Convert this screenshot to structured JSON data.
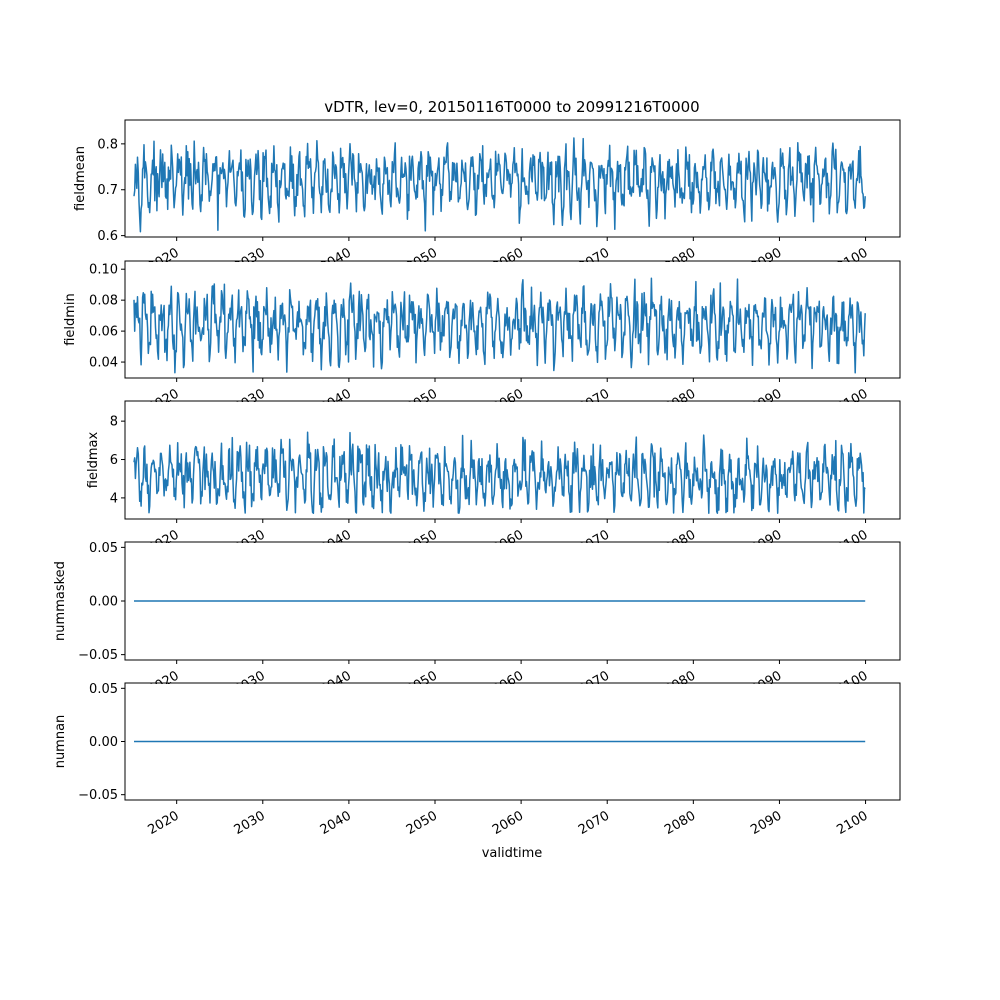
{
  "figure": {
    "title": "vDTR, lev=0, 20150116T0000 to 20991216T0000",
    "xlabel": "validtime",
    "line_color": "#1f77b4"
  },
  "chart_data": [
    {
      "type": "line",
      "ylabel": "fieldmean",
      "xlim": [
        2014,
        2104
      ],
      "ylim": [
        0.597,
        0.852
      ],
      "yticks": [
        0.6,
        0.7,
        0.8
      ],
      "ytick_labels": [
        "0.6",
        "0.7",
        "0.8"
      ],
      "xticks": [
        2020,
        2030,
        2040,
        2050,
        2060,
        2070,
        2080,
        2090,
        2100
      ],
      "xtick_labels": [
        "2020",
        "2030",
        "2040",
        "2050",
        "2060",
        "2070",
        "2080",
        "2090",
        "2100"
      ],
      "x_start": 2015.04,
      "x_end": 2099.96,
      "n_points": 1020,
      "series": [
        {
          "values_summary": {
            "min": 0.607,
            "max": 0.838,
            "mean": 0.72
          }
        }
      ],
      "sample_values": [
        0.68,
        0.66,
        0.71,
        0.78,
        0.74,
        0.7,
        0.76,
        0.72,
        0.69,
        0.81,
        0.73,
        0.66,
        0.75,
        0.79,
        0.7,
        0.65,
        0.74,
        0.77,
        0.68,
        0.72
      ]
    },
    {
      "type": "line",
      "ylabel": "fieldmin",
      "xlim": [
        2014,
        2104
      ],
      "ylim": [
        0.0297,
        0.1053
      ],
      "yticks": [
        0.04,
        0.06,
        0.08,
        0.1
      ],
      "ytick_labels": [
        "0.04",
        "0.06",
        "0.08",
        "0.10"
      ],
      "xticks": [
        2020,
        2030,
        2040,
        2050,
        2060,
        2070,
        2080,
        2090,
        2100
      ],
      "xtick_labels": [
        "2020",
        "2030",
        "2040",
        "2050",
        "2060",
        "2070",
        "2080",
        "2090",
        "2100"
      ],
      "x_start": 2015.04,
      "x_end": 2099.96,
      "n_points": 1020,
      "series": [
        {
          "values_summary": {
            "min": 0.033,
            "max": 0.103,
            "mean": 0.065
          }
        }
      ],
      "sample_values": [
        0.068,
        0.075,
        0.06,
        0.085,
        0.052,
        0.07,
        0.064,
        0.08,
        0.055,
        0.072,
        0.066,
        0.09,
        0.048,
        0.07,
        0.062,
        0.078,
        0.058,
        0.067,
        0.074,
        0.061
      ]
    },
    {
      "type": "line",
      "ylabel": "fieldmax",
      "xlim": [
        2014,
        2104
      ],
      "ylim": [
        2.9,
        9.05
      ],
      "yticks": [
        4,
        6,
        8
      ],
      "ytick_labels": [
        "4",
        "6",
        "8"
      ],
      "xticks": [
        2020,
        2030,
        2040,
        2050,
        2060,
        2070,
        2080,
        2090,
        2100
      ],
      "xtick_labels": [
        "2020",
        "2030",
        "2040",
        "2050",
        "2060",
        "2070",
        "2080",
        "2090",
        "2100"
      ],
      "x_start": 2015.04,
      "x_end": 2099.96,
      "n_points": 1020,
      "series": [
        {
          "values_summary": {
            "min": 3.2,
            "max": 8.8,
            "mean": 5.1
          }
        }
      ],
      "sample_values": [
        4.6,
        4.0,
        5.8,
        6.2,
        4.4,
        5.0,
        7.3,
        4.2,
        5.5,
        6.0,
        4.1,
        5.2,
        7.9,
        4.3,
        5.6,
        6.4,
        4.5,
        4.8,
        6.8,
        5.1
      ]
    },
    {
      "type": "line",
      "ylabel": "nummasked",
      "xlim": [
        2014,
        2104
      ],
      "ylim": [
        -0.055,
        0.055
      ],
      "yticks": [
        -0.05,
        0.0,
        0.05
      ],
      "ytick_labels": [
        "−0.05",
        "0.00",
        "0.05"
      ],
      "xticks": [
        2020,
        2030,
        2040,
        2050,
        2060,
        2070,
        2080,
        2090,
        2100
      ],
      "xtick_labels": [
        "2020",
        "2030",
        "2040",
        "2050",
        "2060",
        "2070",
        "2080",
        "2090",
        "2100"
      ],
      "x_start": 2015.04,
      "x_end": 2099.96,
      "series": [
        {
          "constant": 0.0
        }
      ]
    },
    {
      "type": "line",
      "ylabel": "numnan",
      "xlim": [
        2014,
        2104
      ],
      "ylim": [
        -0.055,
        0.055
      ],
      "yticks": [
        -0.05,
        0.0,
        0.05
      ],
      "ytick_labels": [
        "−0.05",
        "0.00",
        "0.05"
      ],
      "xticks": [
        2020,
        2030,
        2040,
        2050,
        2060,
        2070,
        2080,
        2090,
        2100
      ],
      "xtick_labels": [
        "2020",
        "2030",
        "2040",
        "2050",
        "2060",
        "2070",
        "2080",
        "2090",
        "2100"
      ],
      "x_start": 2015.04,
      "x_end": 2099.96,
      "series": [
        {
          "constant": 0.0
        }
      ]
    }
  ]
}
